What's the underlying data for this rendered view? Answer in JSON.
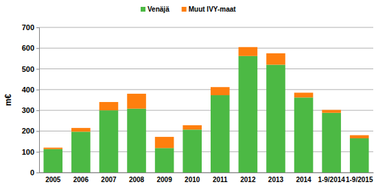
{
  "chart_data": {
    "type": "bar",
    "stacked": true,
    "y_label": "m€",
    "categories": [
      "2005",
      "2006",
      "2007",
      "2008",
      "2009",
      "2010",
      "2011",
      "2012",
      "2013",
      "2014",
      "1-9/2014",
      "1-9/2015"
    ],
    "series": [
      {
        "name": "Venäjä",
        "color": "#4cb944",
        "values": [
          113,
          197,
          300,
          308,
          118,
          207,
          373,
          562,
          520,
          362,
          288,
          165
        ]
      },
      {
        "name": "Muut IVY-maat",
        "color": "#ff7f0e",
        "values": [
          7,
          18,
          40,
          72,
          54,
          21,
          39,
          43,
          55,
          23,
          14,
          15
        ]
      }
    ],
    "ylim": [
      0,
      700
    ],
    "yticks": [
      0,
      100,
      200,
      300,
      400,
      500,
      600,
      700
    ],
    "grid": true,
    "legend": "top"
  }
}
